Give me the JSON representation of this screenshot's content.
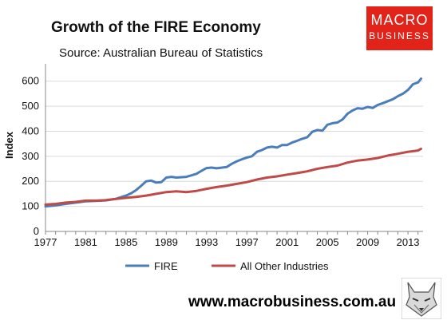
{
  "header": {
    "title": "Growth of the FIRE Economy",
    "subtitle": "Source: Australian Bureau of Statistics"
  },
  "logo": {
    "line1": "MACRO",
    "line2": "BUSINESS",
    "color": "#e2231a"
  },
  "footer": {
    "website": "www.macrobusiness.com.au"
  },
  "chart_data": {
    "type": "line",
    "title": "Growth of the FIRE Economy",
    "subtitle": "Source: Australian Bureau of Statistics",
    "xlabel": "",
    "ylabel": "Index",
    "xlim": [
      1977,
      2014.5
    ],
    "ylim": [
      0,
      650
    ],
    "xticks": [
      1977,
      1981,
      1985,
      1989,
      1993,
      1997,
      2001,
      2005,
      2009,
      2013
    ],
    "yticks": [
      0,
      100,
      200,
      300,
      400,
      500,
      600
    ],
    "grid": "horizontal",
    "legend": "bottom",
    "series": [
      {
        "name": "FIRE",
        "color": "#4a7ebb",
        "x": [
          1977,
          1978,
          1979,
          1980,
          1981,
          1982,
          1983,
          1984,
          1985,
          1985.5,
          1986,
          1986.5,
          1987,
          1987.5,
          1988,
          1988.5,
          1989,
          1989.5,
          1990,
          1991,
          1992,
          1992.5,
          1993,
          1993.5,
          1994,
          1995,
          1995.5,
          1996,
          1996.5,
          1997,
          1997.5,
          1998,
          1998.5,
          1999,
          1999.5,
          2000,
          2000.5,
          2001,
          2001.5,
          2002,
          2002.5,
          2003,
          2003.5,
          2004,
          2004.5,
          2005,
          2005.5,
          2006,
          2006.5,
          2007,
          2007.5,
          2008,
          2008.5,
          2009,
          2009.5,
          2010,
          2010.5,
          2011,
          2011.5,
          2012,
          2012.5,
          2013,
          2013.5,
          2014,
          2014.3
        ],
        "y": [
          100,
          104,
          110,
          115,
          120,
          122,
          124,
          130,
          143,
          152,
          165,
          182,
          200,
          203,
          195,
          197,
          215,
          218,
          215,
          218,
          230,
          242,
          253,
          255,
          252,
          257,
          270,
          280,
          288,
          295,
          300,
          318,
          325,
          335,
          338,
          335,
          345,
          345,
          355,
          362,
          370,
          376,
          398,
          405,
          402,
          426,
          432,
          435,
          447,
          470,
          483,
          492,
          490,
          497,
          493,
          505,
          512,
          520,
          528,
          540,
          550,
          565,
          588,
          595,
          610
        ]
      },
      {
        "name": "All Other Industries",
        "color": "#be4b48",
        "x": [
          1977,
          1978,
          1979,
          1980,
          1981,
          1982,
          1983,
          1984,
          1985,
          1986,
          1987,
          1988,
          1989,
          1990,
          1991,
          1992,
          1993,
          1994,
          1995,
          1996,
          1997,
          1998,
          1999,
          2000,
          2001,
          2002,
          2003,
          2004,
          2005,
          2006,
          2007,
          2008,
          2009,
          2010,
          2011,
          2012,
          2013,
          2014,
          2014.3
        ],
        "y": [
          107,
          110,
          115,
          118,
          123,
          123,
          125,
          130,
          134,
          138,
          143,
          150,
          157,
          160,
          157,
          162,
          170,
          177,
          183,
          190,
          197,
          207,
          215,
          220,
          227,
          233,
          240,
          250,
          257,
          263,
          275,
          283,
          287,
          293,
          303,
          310,
          318,
          323,
          330
        ]
      }
    ]
  }
}
